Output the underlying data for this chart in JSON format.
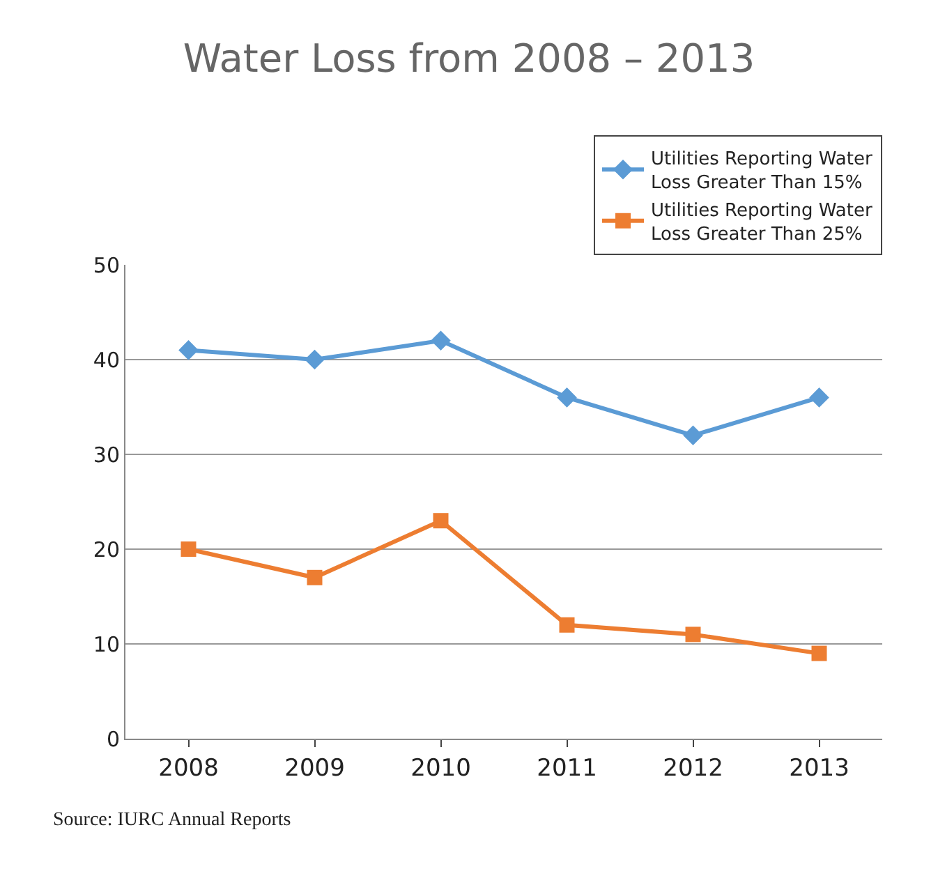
{
  "chart_data": {
    "type": "line",
    "title": "Water Loss from 2008 – 2013",
    "categories": [
      "2008",
      "2009",
      "2010",
      "2011",
      "2012",
      "2013"
    ],
    "series": [
      {
        "name": "Utilities Reporting Water Loss Greater Than 15%",
        "color": "#5b9bd5",
        "marker": "diamond",
        "values": [
          41,
          40,
          42,
          36,
          32,
          36
        ]
      },
      {
        "name": "Utilities Reporting Water Loss Greater Than 25%",
        "color": "#ed7d31",
        "marker": "square",
        "values": [
          20,
          17,
          23,
          12,
          11,
          9
        ]
      }
    ],
    "ylim": [
      0,
      50
    ],
    "yticks": [
      0,
      10,
      20,
      30,
      40,
      50
    ],
    "grid": "y",
    "legend": "top right",
    "line_style": "solid",
    "annotations": [
      "Source: IURC Annual Reports"
    ]
  }
}
